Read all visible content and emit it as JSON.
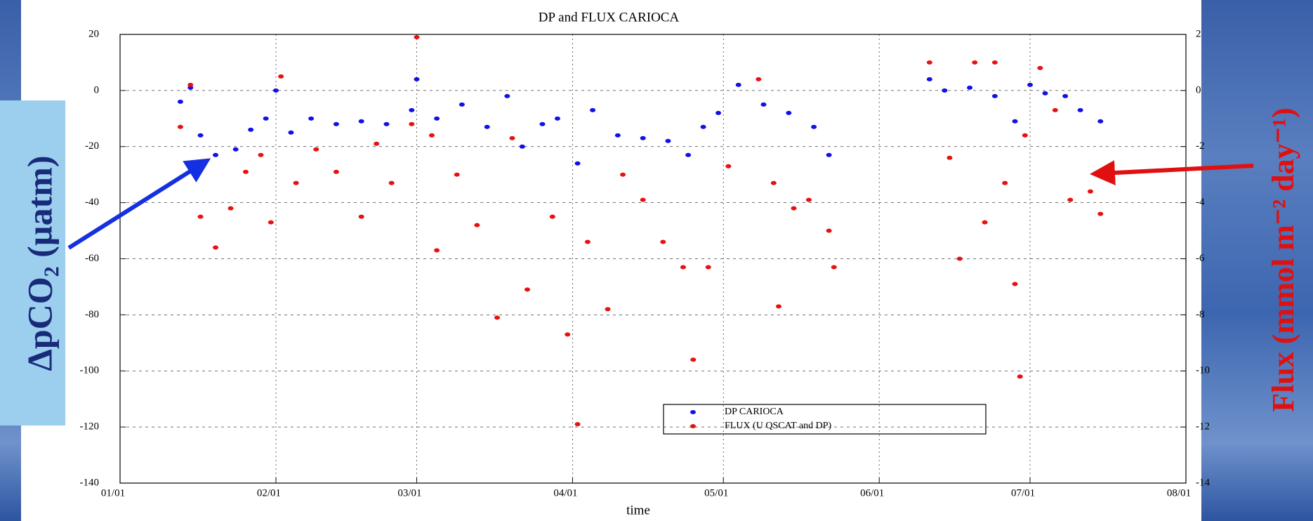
{
  "chart_data": {
    "type": "scatter",
    "title": "DP and FLUX CARIOCA",
    "xlabel": "time",
    "ylabel": "ΔpCO₂ (µatm)",
    "y2label": "Flux (mmol m⁻² day⁻¹)",
    "xlim": [
      "01/01",
      "08/01"
    ],
    "xticks": [
      "01/01",
      "02/01",
      "03/01",
      "04/01",
      "05/01",
      "06/01",
      "07/01",
      "08/01"
    ],
    "ylim": [
      -140,
      20
    ],
    "yticks": [
      -140,
      -120,
      -100,
      -80,
      -60,
      -40,
      -20,
      0,
      20
    ],
    "y2lim": [
      -14,
      2
    ],
    "y2ticks": [
      -14,
      -12,
      -10,
      -8,
      -6,
      -4,
      -2,
      0,
      2
    ],
    "grid": true,
    "legend": "lower center",
    "series": [
      {
        "name": "DP CARIOCA",
        "color": "#1010e8",
        "axis": "y",
        "x": [
          "01/13",
          "01/15",
          "01/17",
          "01/20",
          "01/24",
          "01/27",
          "01/30",
          "02/01",
          "02/04",
          "02/08",
          "02/13",
          "02/18",
          "02/23",
          "02/28",
          "03/01",
          "03/05",
          "03/10",
          "03/15",
          "03/19",
          "03/22",
          "03/26",
          "03/29",
          "04/02",
          "04/05",
          "04/10",
          "04/15",
          "04/20",
          "04/24",
          "04/27",
          "04/30",
          "05/04",
          "05/09",
          "05/14",
          "05/19",
          "05/22",
          "06/11",
          "06/14",
          "06/19",
          "06/24",
          "06/28",
          "07/01",
          "07/04",
          "07/08",
          "07/11",
          "07/15"
        ],
        "values": [
          -4,
          1,
          -16,
          -23,
          -21,
          -14,
          -10,
          0,
          -15,
          -10,
          -12,
          -11,
          -12,
          -7,
          4,
          -10,
          -5,
          -13,
          -2,
          -20,
          -12,
          -10,
          -26,
          -7,
          -16,
          -17,
          -18,
          -23,
          -13,
          -8,
          2,
          -5,
          -8,
          -13,
          -23,
          4,
          0,
          1,
          -2,
          -11,
          2,
          -1,
          -2,
          -7,
          -11
        ]
      },
      {
        "name": "FLUX (U QSCAT and DP)",
        "color": "#e81010",
        "axis": "y2",
        "x": [
          "01/13",
          "01/15",
          "01/17",
          "01/20",
          "01/23",
          "01/26",
          "01/29",
          "01/31",
          "02/02",
          "02/05",
          "02/09",
          "02/13",
          "02/18",
          "02/21",
          "02/24",
          "02/28",
          "03/01",
          "03/04",
          "03/05",
          "03/09",
          "03/13",
          "03/17",
          "03/20",
          "03/23",
          "03/28",
          "03/31",
          "04/02",
          "04/04",
          "04/08",
          "04/11",
          "04/15",
          "04/19",
          "04/23",
          "04/25",
          "04/28",
          "05/02",
          "05/08",
          "05/11",
          "05/12",
          "05/15",
          "05/18",
          "05/22",
          "05/23",
          "06/11",
          "06/15",
          "06/17",
          "06/20",
          "06/22",
          "06/24",
          "06/26",
          "06/28",
          "06/29",
          "06/30",
          "07/03",
          "07/06",
          "07/09",
          "07/13",
          "07/15"
        ],
        "values": [
          -1.3,
          0.2,
          -4.5,
          -5.6,
          -4.2,
          -2.9,
          -2.3,
          -4.7,
          0.5,
          -3.3,
          -2.1,
          -2.9,
          -4.5,
          -1.9,
          -3.3,
          -1.2,
          1.9,
          -1.6,
          -5.7,
          -3.0,
          -4.8,
          -8.1,
          -1.7,
          -7.1,
          -4.5,
          -8.7,
          -11.9,
          -5.4,
          -7.8,
          -3.0,
          -3.9,
          -5.4,
          -6.3,
          -9.6,
          -6.3,
          -2.7,
          0.4,
          -3.3,
          -7.7,
          -4.2,
          -3.9,
          -5.0,
          -6.3,
          1.0,
          -2.4,
          -6.0,
          1.0,
          -4.7,
          1.0,
          -3.3,
          -6.9,
          -10.2,
          -1.6,
          0.8,
          -0.7,
          -3.9,
          -3.6,
          -4.4
        ]
      }
    ]
  }
}
